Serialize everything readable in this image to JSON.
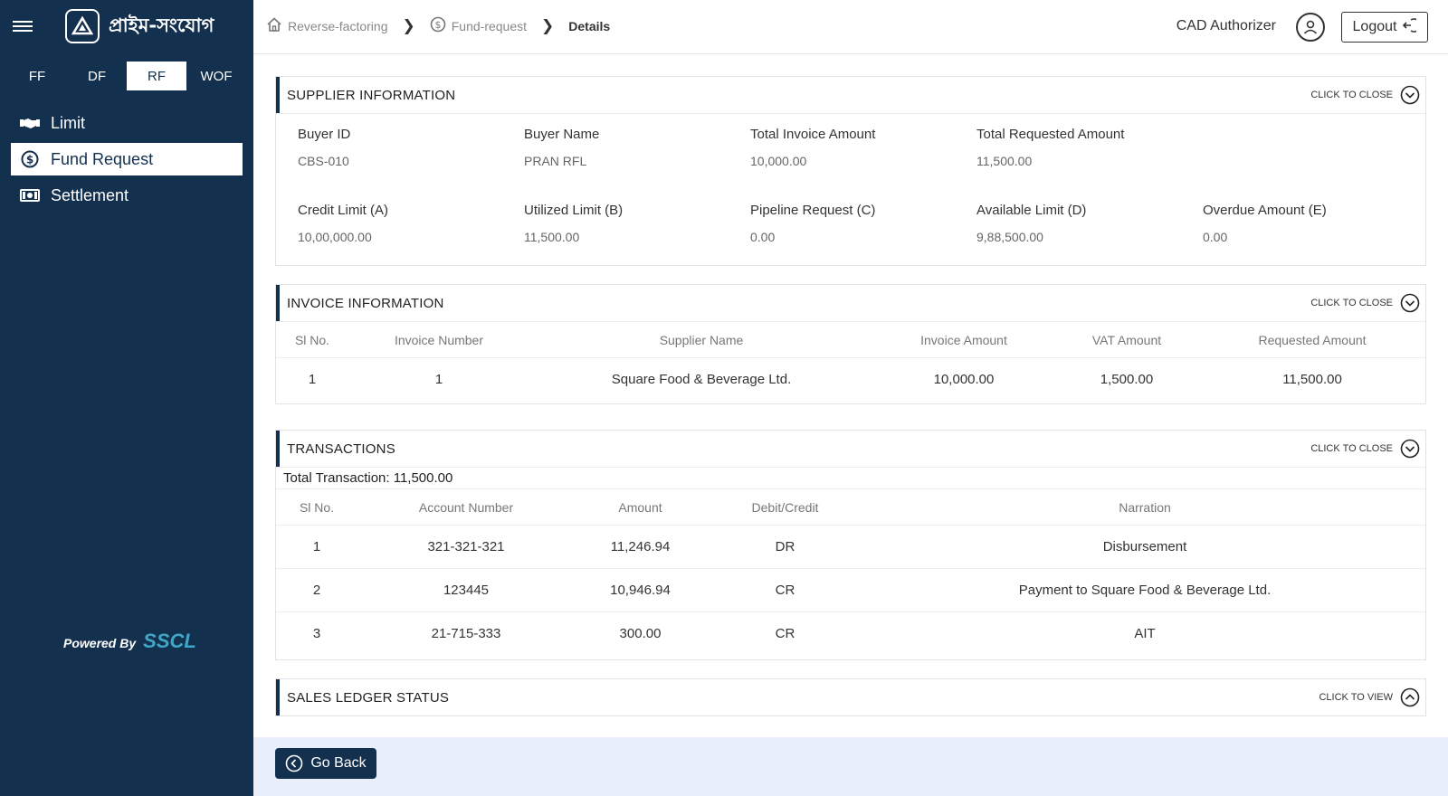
{
  "app": {
    "title": "প্রাইম-সংযোগ"
  },
  "product_tabs": [
    {
      "label": "FF",
      "active": false
    },
    {
      "label": "DF",
      "active": false
    },
    {
      "label": "RF",
      "active": true
    },
    {
      "label": "WOF",
      "active": false
    }
  ],
  "nav": {
    "items": [
      {
        "label": "Limit",
        "icon": "handshake-icon"
      },
      {
        "label": "Fund Request",
        "icon": "dollar-circle-icon",
        "active": true
      },
      {
        "label": "Settlement",
        "icon": "banknote-icon"
      }
    ]
  },
  "powered": {
    "label": "Powered By",
    "brand": "SSCL"
  },
  "breadcrumb": [
    {
      "label": "Reverse-factoring",
      "icon": "home-icon"
    },
    {
      "label": "Fund-request",
      "icon": "dollar-circle-icon"
    },
    {
      "label": "Details"
    }
  ],
  "user": {
    "role": "CAD Authorizer",
    "logout_label": "Logout"
  },
  "supplier": {
    "title": "SUPPLIER INFORMATION",
    "toggle_label": "CLICK TO CLOSE",
    "fields": [
      {
        "label": "Buyer ID",
        "value": "CBS-010"
      },
      {
        "label": "Buyer Name",
        "value": "PRAN RFL"
      },
      {
        "label": "Total Invoice Amount",
        "value": "10,000.00"
      },
      {
        "label": "Total Requested Amount",
        "value": "11,500.00"
      },
      {
        "label": "Credit Limit (A)",
        "value": "10,00,000.00"
      },
      {
        "label": "Utilized Limit (B)",
        "value": "11,500.00"
      },
      {
        "label": "Pipeline Request (C)",
        "value": "0.00"
      },
      {
        "label": "Available Limit (D)",
        "value": "9,88,500.00"
      },
      {
        "label": "Overdue Amount (E)",
        "value": "0.00"
      }
    ]
  },
  "invoice": {
    "title": "INVOICE INFORMATION",
    "toggle_label": "CLICK TO CLOSE",
    "columns": [
      "Sl No.",
      "Invoice Number",
      "Supplier Name",
      "Invoice Amount",
      "VAT Amount",
      "Requested Amount"
    ],
    "rows": [
      [
        "1",
        "1",
        "Square Food & Beverage Ltd.",
        "10,000.00",
        "1,500.00",
        "11,500.00"
      ]
    ]
  },
  "transactions": {
    "title": "TRANSACTIONS",
    "toggle_label": "CLICK TO CLOSE",
    "total_label": "Total Transaction: 11,500.00",
    "columns": [
      "Sl No.",
      "Account Number",
      "Amount",
      "Debit/Credit",
      "Narration"
    ],
    "rows": [
      [
        "1",
        "321-321-321",
        "11,246.94",
        "DR",
        "Disbursement"
      ],
      [
        "2",
        "123445",
        "10,946.94",
        "CR",
        "Payment to Square Food & Beverage Ltd."
      ],
      [
        "3",
        "21-715-333",
        "300.00",
        "CR",
        "AIT"
      ]
    ]
  },
  "ledger": {
    "title": "SALES LEDGER STATUS",
    "toggle_label": "CLICK TO VIEW"
  },
  "footer": {
    "go_back_label": "Go Back"
  },
  "colors": {
    "sidebar": "#14304f",
    "brand_accent": "#3ea7c7",
    "footer_bg": "#e9eefb"
  }
}
